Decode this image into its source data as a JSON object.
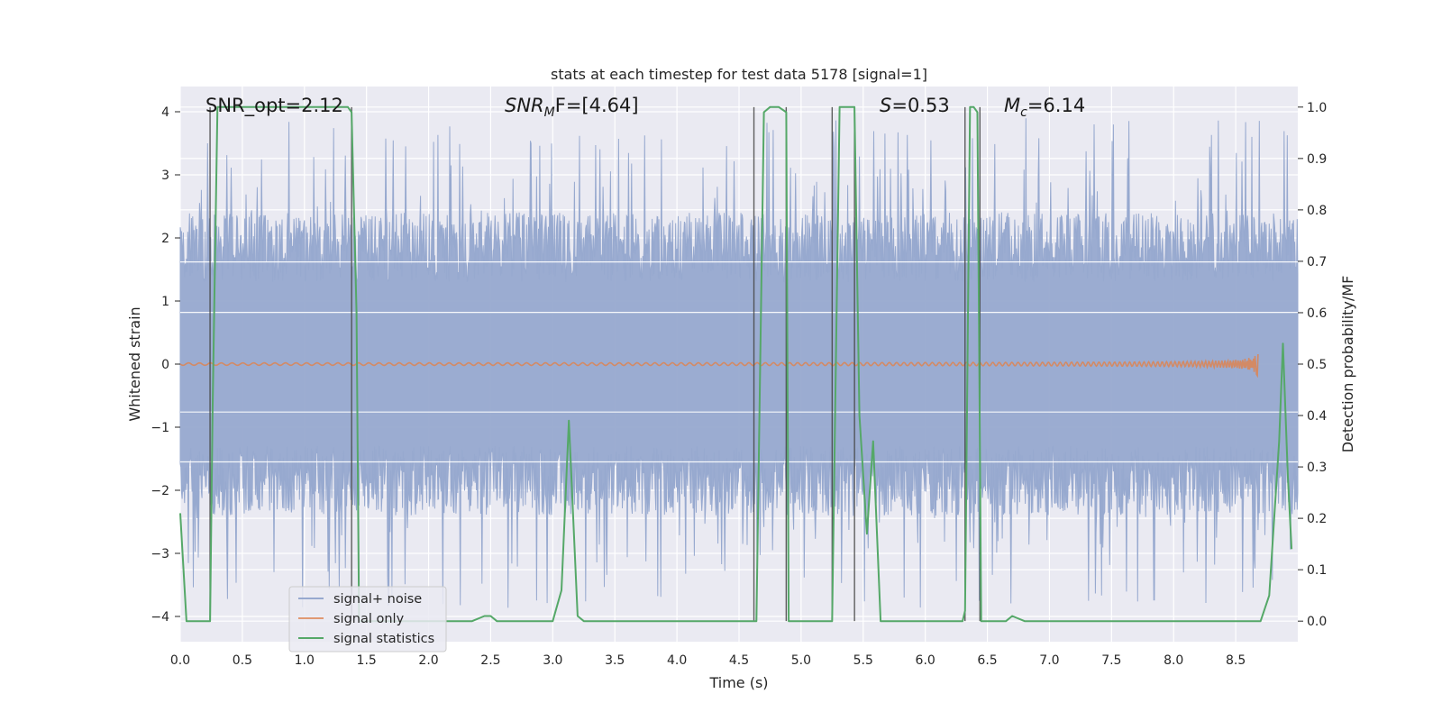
{
  "chart_data": {
    "type": "line",
    "title": "stats at each timestep for test data 5178 [signal=1]",
    "xlabel": "Time (s)",
    "ylabel": "Whitened strain",
    "ylabel_right": "Detection probability/MF",
    "xlim": [
      0,
      9
    ],
    "ylim": [
      -4.4,
      4.4
    ],
    "ylim_right": [
      -0.04,
      1.04
    ],
    "x_ticks": [
      "0.0",
      "0.5",
      "1.0",
      "1.5",
      "2.0",
      "2.5",
      "3.0",
      "3.5",
      "4.0",
      "4.5",
      "5.0",
      "5.5",
      "6.0",
      "6.5",
      "7.0",
      "7.5",
      "8.0",
      "8.5"
    ],
    "y_ticks": [
      "4",
      "3",
      "2",
      "1",
      "0",
      "−1",
      "−2",
      "−3",
      "−4"
    ],
    "y_ticks_right": [
      "1.0",
      "0.9",
      "0.8",
      "0.7",
      "0.6",
      "0.5",
      "0.4",
      "0.3",
      "0.2",
      "0.1",
      "0.0"
    ],
    "grid": true,
    "legend_position": "lower-left",
    "annotations": {
      "snr_opt": "SNR_opt=2.12",
      "snr_mf_prefix": "SNR",
      "snr_mf_sub": "M",
      "snr_mf_suffix": "F=[4.64]",
      "s_prefix": "S",
      "s_suffix": "=0.53",
      "mc_prefix": "M",
      "mc_sub": "c",
      "mc_suffix": "=6.14"
    },
    "colors": {
      "signal_noise": "#97a9cf",
      "signal_only": "#dd8452",
      "signal_statistics": "#55a868",
      "background": "#eaeaf2",
      "vlines": "#444444"
    },
    "series": [
      {
        "name": "signal+ noise",
        "kind": "noise_band",
        "envelope": {
          "core": 1.3,
          "typical_peak": 2.4,
          "max_peak": 3.9
        }
      },
      {
        "name": "signal only",
        "kind": "chirp",
        "end_time": 8.68,
        "peak_amplitude": 0.2
      },
      {
        "name": "signal statistics",
        "kind": "line",
        "axis": "right",
        "points": [
          [
            0.0,
            0.21
          ],
          [
            0.05,
            0.0
          ],
          [
            0.24,
            0.0
          ],
          [
            0.26,
            0.4
          ],
          [
            0.3,
            1.0
          ],
          [
            1.35,
            1.0
          ],
          [
            1.38,
            0.99
          ],
          [
            1.42,
            0.6
          ],
          [
            1.44,
            0.0
          ],
          [
            2.35,
            0.0
          ],
          [
            2.45,
            0.01
          ],
          [
            2.5,
            0.01
          ],
          [
            2.55,
            0.0
          ],
          [
            3.0,
            0.0
          ],
          [
            3.07,
            0.06
          ],
          [
            3.13,
            0.39
          ],
          [
            3.2,
            0.01
          ],
          [
            3.25,
            0.0
          ],
          [
            4.6,
            0.0
          ],
          [
            4.64,
            0.0
          ],
          [
            4.7,
            0.99
          ],
          [
            4.75,
            1.0
          ],
          [
            4.82,
            1.0
          ],
          [
            4.88,
            0.99
          ],
          [
            4.9,
            0.0
          ],
          [
            5.23,
            0.0
          ],
          [
            5.25,
            0.0
          ],
          [
            5.31,
            1.0
          ],
          [
            5.43,
            1.0
          ],
          [
            5.47,
            0.4
          ],
          [
            5.53,
            0.17
          ],
          [
            5.58,
            0.35
          ],
          [
            5.64,
            0.0
          ],
          [
            6.0,
            0.0
          ],
          [
            6.1,
            0.0
          ],
          [
            6.3,
            0.0
          ],
          [
            6.32,
            0.02
          ],
          [
            6.36,
            1.0
          ],
          [
            6.39,
            1.0
          ],
          [
            6.42,
            0.99
          ],
          [
            6.45,
            0.0
          ],
          [
            6.65,
            0.0
          ],
          [
            6.7,
            0.01
          ],
          [
            6.8,
            0.0
          ],
          [
            8.7,
            0.0
          ],
          [
            8.77,
            0.05
          ],
          [
            8.85,
            0.35
          ],
          [
            8.88,
            0.54
          ],
          [
            8.92,
            0.28
          ],
          [
            8.95,
            0.14
          ]
        ]
      },
      {
        "name": "",
        "kind": "vlines",
        "x": [
          0.24,
          1.38,
          4.62,
          4.88,
          5.25,
          5.43,
          6.32,
          6.44
        ]
      }
    ],
    "legend": [
      {
        "label": "signal+ noise",
        "color": "#97a9cf"
      },
      {
        "label": "signal only",
        "color": "#dd8452"
      },
      {
        "label": "signal statistics",
        "color": "#55a868"
      }
    ]
  }
}
